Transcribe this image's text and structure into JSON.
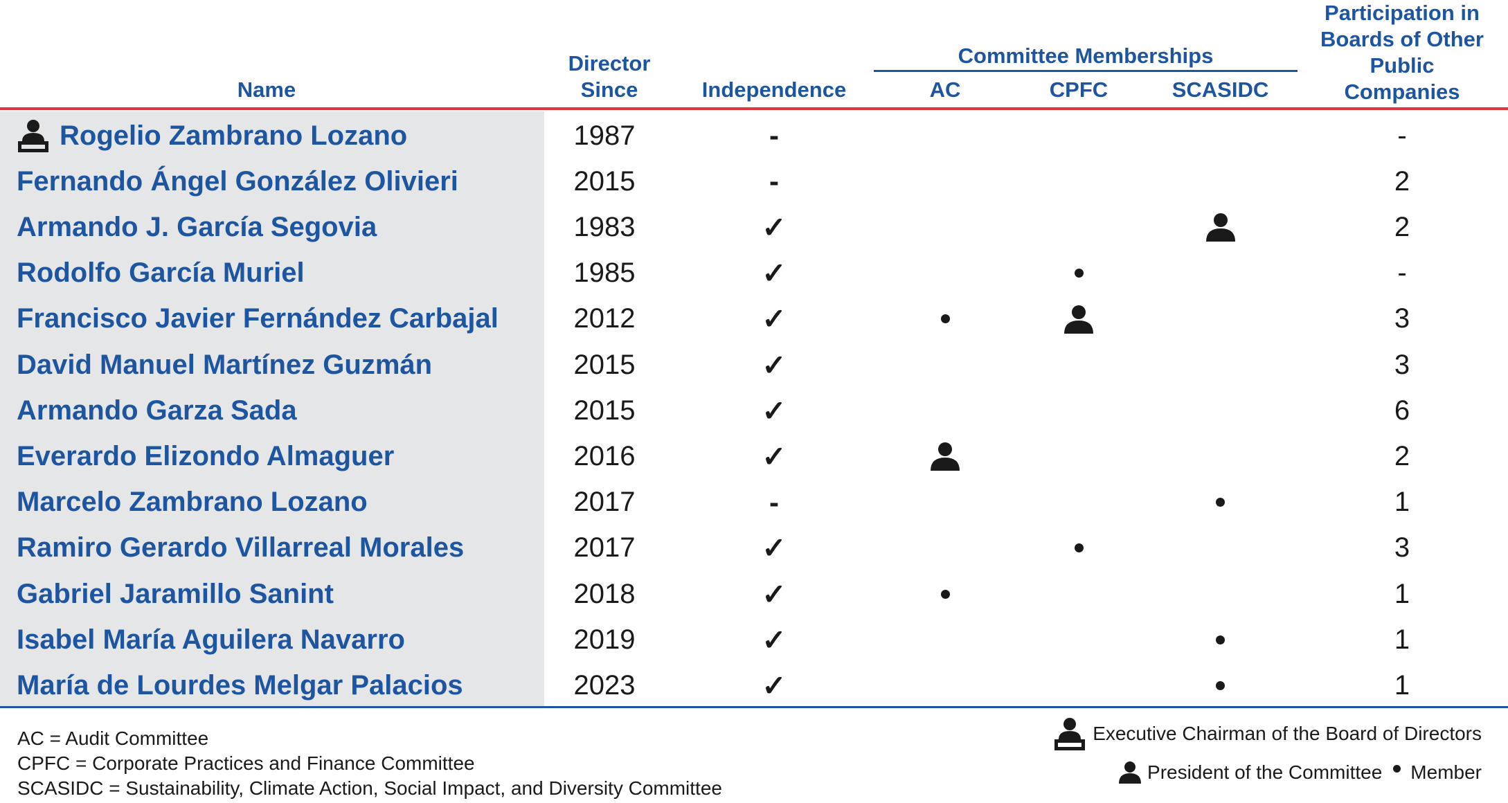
{
  "headers": {
    "name": "Name",
    "director_since": [
      "Director",
      "Since"
    ],
    "independence": "Independence",
    "committee_memberships": "Committee Memberships",
    "ac": "AC",
    "cpfc": "CPFC",
    "scasidc": "SCASIDC",
    "participation": [
      "Participation in",
      "Boards of Other",
      "Public",
      "Companies"
    ]
  },
  "rows": [
    {
      "name": "Rogelio Zambrano Lozano",
      "chairman": true,
      "year": "1987",
      "independence": "-",
      "ac": "",
      "cpfc": "",
      "scasidc": "",
      "participation": "-"
    },
    {
      "name": "Fernando Ángel González Olivieri",
      "chairman": false,
      "year": "2015",
      "independence": "-",
      "ac": "",
      "cpfc": "",
      "scasidc": "",
      "participation": "2"
    },
    {
      "name": "Armando J. García Segovia",
      "chairman": false,
      "year": "1983",
      "independence": "✓",
      "ac": "",
      "cpfc": "",
      "scasidc": "president",
      "participation": "2"
    },
    {
      "name": "Rodolfo García Muriel",
      "chairman": false,
      "year": "1985",
      "independence": "✓",
      "ac": "",
      "cpfc": "member",
      "scasidc": "",
      "participation": "-"
    },
    {
      "name": "Francisco Javier Fernández Carbajal",
      "chairman": false,
      "year": "2012",
      "independence": "✓",
      "ac": "member",
      "cpfc": "president",
      "scasidc": "",
      "participation": "3"
    },
    {
      "name": "David Manuel Martínez Guzmán",
      "chairman": false,
      "year": "2015",
      "independence": "✓",
      "ac": "",
      "cpfc": "",
      "scasidc": "",
      "participation": "3"
    },
    {
      "name": "Armando Garza Sada",
      "chairman": false,
      "year": "2015",
      "independence": "✓",
      "ac": "",
      "cpfc": "",
      "scasidc": "",
      "participation": "6"
    },
    {
      "name": "Everardo Elizondo Almaguer",
      "chairman": false,
      "year": "2016",
      "independence": "✓",
      "ac": "president",
      "cpfc": "",
      "scasidc": "",
      "participation": "2"
    },
    {
      "name": "Marcelo Zambrano Lozano",
      "chairman": false,
      "year": "2017",
      "independence": "-",
      "ac": "",
      "cpfc": "",
      "scasidc": "member",
      "participation": "1"
    },
    {
      "name": "Ramiro Gerardo Villarreal Morales",
      "chairman": false,
      "year": "2017",
      "independence": "✓",
      "ac": "",
      "cpfc": "member",
      "scasidc": "",
      "participation": "3"
    },
    {
      "name": "Gabriel Jaramillo Sanint",
      "chairman": false,
      "year": "2018",
      "independence": "✓",
      "ac": "member",
      "cpfc": "",
      "scasidc": "",
      "participation": "1"
    },
    {
      "name": "Isabel María Aguilera Navarro",
      "chairman": false,
      "year": "2019",
      "independence": "✓",
      "ac": "",
      "cpfc": "",
      "scasidc": "member",
      "participation": "1"
    },
    {
      "name": "María de Lourdes Melgar Palacios",
      "chairman": false,
      "year": "2023",
      "independence": "✓",
      "ac": "",
      "cpfc": "",
      "scasidc": "member",
      "participation": "1"
    }
  ],
  "legend": {
    "ac": "AC = Audit Committee",
    "cpfc": "CPFC = Corporate Practices and Finance Committee",
    "scasidc": "SCASIDC = Sustainability, Climate Action, Social Impact, and Diversity Committee",
    "chairman": "Executive Chairman of the Board of Directors",
    "president": "President of the Committee",
    "member": "Member"
  },
  "icons": {
    "chairman": "chairman-icon",
    "president": "president-icon",
    "member": "member-dot-icon"
  },
  "colors": {
    "header_blue": "#1e55a0",
    "rule_red": "#e0343d",
    "name_panel_gray": "#e5e6e8"
  }
}
